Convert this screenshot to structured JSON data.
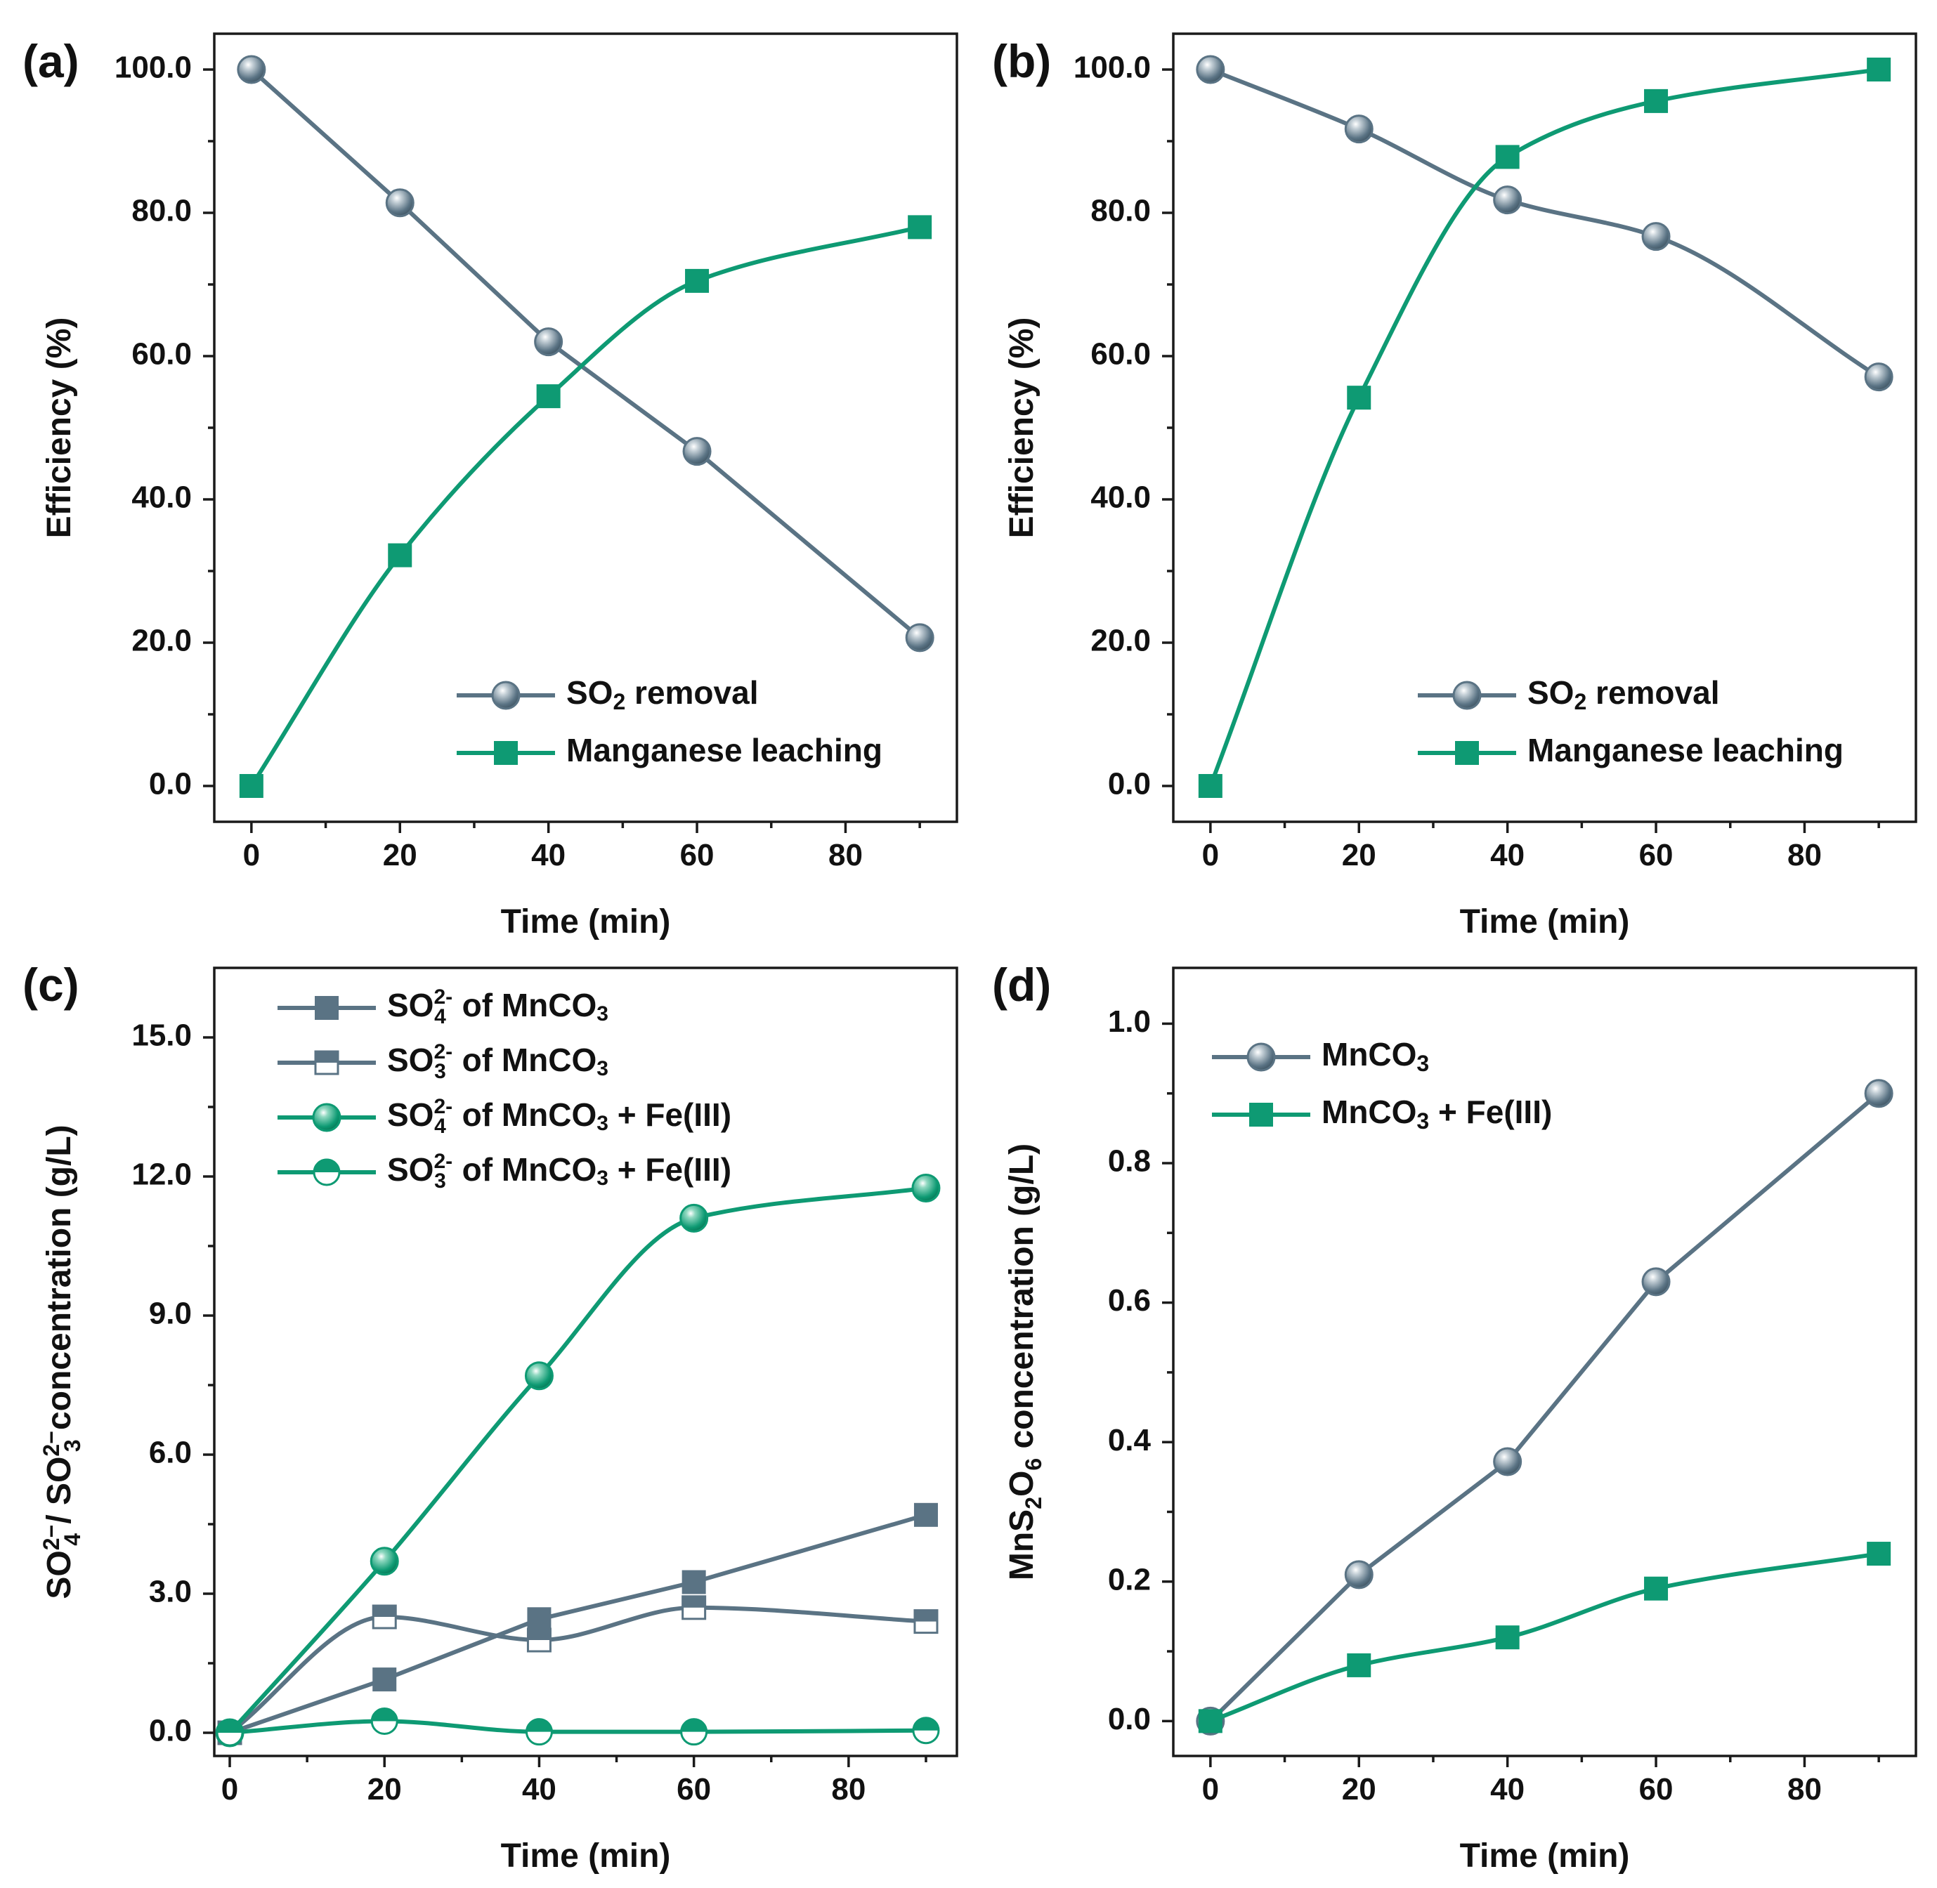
{
  "colors": {
    "gray": "#5a7384",
    "green": "#0e9a73",
    "axis": "#1a1a1a"
  },
  "chart_data": [
    {
      "panel_label": "(a)",
      "type": "line",
      "xlabel": "Time (min)",
      "ylabel": "Efficiency (%)",
      "xlim": [
        -5,
        95
      ],
      "ylim": [
        -5,
        105
      ],
      "xticks": [
        0,
        20,
        40,
        60,
        80
      ],
      "yticks": [
        0,
        20,
        40,
        60,
        80,
        100
      ],
      "ytick_labels": [
        "0.0",
        "20.0",
        "40.0",
        "60.0",
        "80.0",
        "100.0"
      ],
      "legend_position": "bottom-right",
      "series": [
        {
          "name": "SO₂ removal",
          "label_main": "SO",
          "label_sub": "2",
          "label_rest": " removal",
          "color": "#5a7384",
          "marker": "sphere",
          "curve": "linear",
          "x": [
            0,
            20,
            40,
            60,
            90
          ],
          "y": [
            100,
            81.4,
            62,
            46.7,
            20.7
          ]
        },
        {
          "name": "Manganese leaching",
          "label_main": "Manganese leaching",
          "color": "#0e9a73",
          "marker": "square",
          "curve": "smooth",
          "x": [
            0,
            20,
            40,
            60,
            90
          ],
          "y": [
            0,
            32.2,
            54.4,
            70.5,
            78
          ]
        }
      ]
    },
    {
      "panel_label": "(b)",
      "type": "line",
      "xlabel": "Time (min)",
      "ylabel": "Efficiency (%)",
      "xlim": [
        -5,
        95
      ],
      "ylim": [
        -5,
        105
      ],
      "xticks": [
        0,
        20,
        40,
        60,
        80
      ],
      "yticks": [
        0,
        20,
        40,
        60,
        80,
        100
      ],
      "ytick_labels": [
        "0.0",
        "20.0",
        "40.0",
        "60.0",
        "80.0",
        "100.0"
      ],
      "legend_position": "bottom-right",
      "series": [
        {
          "name": "SO₂ removal",
          "label_main": "SO",
          "label_sub": "2",
          "label_rest": " removal",
          "color": "#5a7384",
          "marker": "sphere",
          "curve": "smooth",
          "x": [
            0,
            20,
            40,
            60,
            90
          ],
          "y": [
            100,
            91.7,
            81.8,
            76.7,
            57.1
          ]
        },
        {
          "name": "Manganese leaching",
          "label_main": "Manganese leaching",
          "color": "#0e9a73",
          "marker": "square",
          "curve": "smooth",
          "x": [
            0,
            20,
            40,
            60,
            90
          ],
          "y": [
            0,
            54.2,
            87.8,
            95.6,
            100
          ]
        }
      ]
    },
    {
      "panel_label": "(c)",
      "type": "line",
      "xlabel": "Time (min)",
      "ylabel": "SO₄²⁻ / SO₃²⁻ concentration (g/L)",
      "ylabel_parts": {
        "a": "SO",
        "a_sub": "4",
        "a_sup": "2−",
        "sep": " / SO",
        "b_sub": "3",
        "b_sup": "2−",
        "rest": " concentration (g/L)"
      },
      "xlim": [
        -2,
        94
      ],
      "ylim": [
        -0.5,
        16.5
      ],
      "xticks": [
        0,
        20,
        40,
        60,
        80
      ],
      "yticks": [
        0,
        3,
        6,
        9,
        12,
        15
      ],
      "ytick_labels": [
        "0.0",
        "3.0",
        "6.0",
        "9.0",
        "12.0",
        "15.0"
      ],
      "legend_position": "top-left",
      "series": [
        {
          "name": "SO₄²⁻ of MnCO₃",
          "ion_sub": "4",
          "ion_sup": "2-",
          "label_rest": " of MnCO",
          "rest_sub": "3",
          "label_tail": "",
          "color": "#5a7384",
          "marker": "square",
          "curve": "linear",
          "x": [
            0,
            20,
            40,
            60,
            90
          ],
          "y": [
            0,
            1.15,
            2.45,
            3.25,
            4.7
          ]
        },
        {
          "name": "SO₃²⁻ of MnCO₃",
          "ion_sub": "3",
          "ion_sup": "2-",
          "label_rest": " of MnCO",
          "rest_sub": "3",
          "label_tail": "",
          "color": "#5a7384",
          "marker": "half-square",
          "curve": "smooth",
          "x": [
            0,
            20,
            40,
            60,
            90
          ],
          "y": [
            0,
            2.5,
            2,
            2.7,
            2.4
          ]
        },
        {
          "name": "SO₄²⁻ of MnCO₃ + Fe(III)",
          "ion_sub": "4",
          "ion_sup": "2-",
          "label_rest": " of MnCO",
          "rest_sub": "3",
          "label_tail": " + Fe(III)",
          "color": "#0e9a73",
          "marker": "sphere",
          "curve": "smooth",
          "x": [
            0,
            20,
            40,
            60,
            90
          ],
          "y": [
            0,
            3.7,
            7.7,
            11.1,
            11.75
          ]
        },
        {
          "name": "SO₃²⁻ of MnCO₃ + Fe(III)",
          "ion_sub": "3",
          "ion_sup": "2-",
          "label_rest": " of MnCO",
          "rest_sub": "3",
          "label_tail": " + Fe(III)",
          "color": "#0e9a73",
          "marker": "half-circle",
          "curve": "smooth",
          "x": [
            0,
            20,
            40,
            60,
            90
          ],
          "y": [
            0,
            0.25,
            0.02,
            0.02,
            0.05
          ]
        }
      ]
    },
    {
      "panel_label": "(d)",
      "type": "line",
      "xlabel": "Time (min)",
      "ylabel": "MnS₂O₆ concentration (g/L)",
      "ylabel_parts": {
        "a": "MnS",
        "a_sub": "2",
        "b": "O",
        "b_sub": "6",
        "rest": " concentration (g/L)"
      },
      "xlim": [
        -5,
        95
      ],
      "ylim": [
        -0.05,
        1.08
      ],
      "xticks": [
        0,
        20,
        40,
        60,
        80
      ],
      "yticks": [
        0,
        0.2,
        0.4,
        0.6,
        0.8,
        1.0
      ],
      "ytick_labels": [
        "0.0",
        "0.2",
        "0.4",
        "0.6",
        "0.8",
        "1.0"
      ],
      "legend_position": "top-left",
      "series": [
        {
          "name": "MnCO₃",
          "label_main": "MnCO",
          "label_sub": "3",
          "label_rest": "",
          "color": "#5a7384",
          "marker": "sphere",
          "curve": "linear",
          "x": [
            0,
            20,
            40,
            60,
            90
          ],
          "y": [
            0,
            0.21,
            0.372,
            0.63,
            0.9
          ]
        },
        {
          "name": "MnCO₃ + Fe(III)",
          "label_main": "MnCO",
          "label_sub": "3",
          "label_rest": " + Fe(III)",
          "color": "#0e9a73",
          "marker": "square",
          "curve": "smooth",
          "x": [
            0,
            20,
            40,
            60,
            90
          ],
          "y": [
            0,
            0.08,
            0.12,
            0.19,
            0.24
          ]
        }
      ]
    }
  ]
}
